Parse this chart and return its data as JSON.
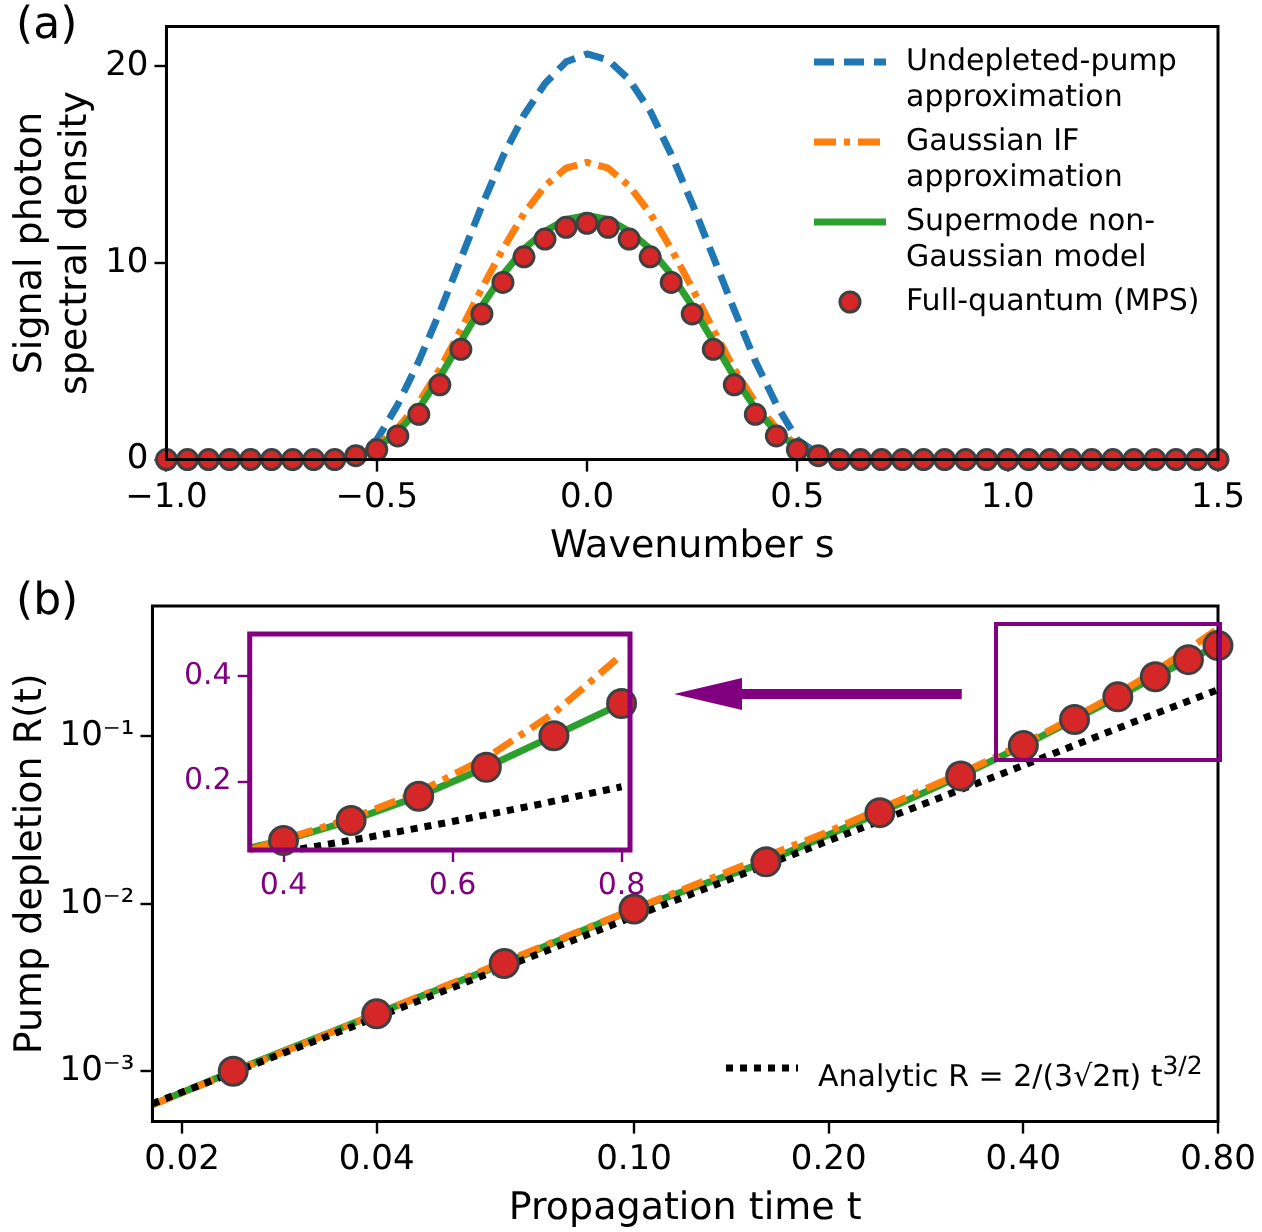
{
  "chart_data": [
    {
      "type": "line",
      "title": "(a)",
      "xlabel": "Wavenumber s",
      "ylabel": "Signal photon\nspectral density",
      "xlim": [
        -1,
        1.5
      ],
      "xticks": [
        {
          "value": -1,
          "label": "−1.0"
        },
        {
          "value": -0.5,
          "label": "−0.5"
        },
        {
          "value": 0,
          "label": "0.0"
        },
        0.5,
        {
          "value": 1,
          "label": "1.0"
        },
        1.5
      ],
      "ylim": [
        0,
        22
      ],
      "yticks": [
        0,
        10,
        20
      ],
      "grid": false,
      "legend": "top right",
      "series": [
        {
          "name": "Undepleted-pump approximation",
          "color": "#1f77b4",
          "line_style": "dashed",
          "marker": "none",
          "x": [
            -1,
            -0.6,
            -0.55,
            -0.5,
            -0.45,
            -0.4,
            -0.35,
            -0.3,
            -0.25,
            -0.2,
            -0.15,
            -0.1,
            -0.05,
            0,
            0.05,
            0.1,
            0.15,
            0.2,
            0.25,
            0.3,
            0.35,
            0.4,
            0.45,
            0.5,
            0.55,
            0.6,
            1.5
          ],
          "values": [
            0,
            0,
            0.3,
            1.0,
            2.8,
            5.0,
            7.5,
            10.2,
            12.9,
            15.4,
            17.5,
            19.1,
            20.2,
            20.6,
            20.3,
            19.3,
            17.7,
            15.5,
            13.0,
            10.3,
            7.6,
            5.0,
            2.8,
            1.0,
            0.3,
            0,
            0
          ]
        },
        {
          "name": "Gaussian IF approximation",
          "color": "#ff7f0e",
          "line_style": "dashdot",
          "marker": "none",
          "x": [
            -0.55,
            -0.5,
            -0.45,
            -0.4,
            -0.35,
            -0.3,
            -0.25,
            -0.2,
            -0.15,
            -0.1,
            -0.05,
            0,
            0.05,
            0.1,
            0.15,
            0.2,
            0.25,
            0.3,
            0.35,
            0.4,
            0.45,
            0.5,
            0.55
          ],
          "values": [
            0.2,
            0.7,
            1.6,
            2.9,
            4.6,
            6.6,
            8.7,
            10.7,
            12.5,
            13.9,
            14.8,
            15.1,
            14.8,
            13.9,
            12.5,
            10.7,
            8.7,
            6.6,
            4.6,
            2.9,
            1.6,
            0.7,
            0.2
          ]
        },
        {
          "name": "Supermode non-Gaussian model",
          "color": "#2ca02c",
          "line_style": "solid",
          "marker": "none",
          "x": [
            -0.55,
            -0.5,
            -0.45,
            -0.4,
            -0.35,
            -0.3,
            -0.25,
            -0.2,
            -0.15,
            -0.1,
            -0.05,
            0,
            0.05,
            0.1,
            0.15,
            0.2,
            0.25,
            0.3,
            0.35,
            0.4,
            0.45,
            0.5,
            0.55
          ],
          "values": [
            0.2,
            0.6,
            1.4,
            2.6,
            4.2,
            6.0,
            7.8,
            9.4,
            10.7,
            11.6,
            12.2,
            12.4,
            12.2,
            11.6,
            10.7,
            9.4,
            7.8,
            6.0,
            4.2,
            2.6,
            1.4,
            0.6,
            0.2
          ]
        },
        {
          "name": "Full-quantum (MPS)",
          "type": "scatter",
          "color": "#d62728",
          "marker": "circle",
          "x": [
            -1,
            -0.95,
            -0.9,
            -0.85,
            -0.8,
            -0.75,
            -0.7,
            -0.65,
            -0.6,
            -0.55,
            -0.5,
            -0.45,
            -0.4,
            -0.35,
            -0.3,
            -0.25,
            -0.2,
            -0.15,
            -0.1,
            -0.05,
            0,
            0.05,
            0.1,
            0.15,
            0.2,
            0.25,
            0.3,
            0.35,
            0.4,
            0.45,
            0.5,
            0.55,
            0.6,
            0.65,
            0.7,
            0.75,
            0.8,
            0.85,
            0.9,
            0.95,
            1,
            1.05,
            1.1,
            1.15,
            1.2,
            1.25,
            1.3,
            1.35,
            1.4,
            1.45,
            1.5
          ],
          "values": [
            0,
            0,
            0,
            0,
            0,
            0,
            0,
            0,
            0,
            0.2,
            0.5,
            1.2,
            2.3,
            3.8,
            5.6,
            7.4,
            9.0,
            10.3,
            11.2,
            11.8,
            12.0,
            11.8,
            11.2,
            10.3,
            9.0,
            7.4,
            5.6,
            3.8,
            2.3,
            1.2,
            0.5,
            0.2,
            0,
            0,
            0,
            0,
            0,
            0,
            0,
            0,
            0,
            0,
            0,
            0,
            0,
            0,
            0,
            0,
            0,
            0,
            0
          ]
        }
      ]
    },
    {
      "type": "line",
      "title": "(b)",
      "xlabel": "Propagation time t",
      "ylabel": "Pump depletion R(t)",
      "log": "xy",
      "xlim": [
        0.018,
        0.8
      ],
      "xticks": [
        0.02,
        0.04,
        {
          "value": 0.1,
          "label": "0.10"
        },
        {
          "value": 0.2,
          "label": "0.20"
        },
        {
          "value": 0.4,
          "label": "0.40"
        },
        {
          "value": 0.8,
          "label": "0.80"
        }
      ],
      "ylim": [
        0.0005,
        0.6
      ],
      "yticks": [
        {
          "value": 0.001,
          "label": "10⁻³"
        },
        {
          "value": 0.01,
          "label": "10⁻²"
        },
        {
          "value": 0.1,
          "label": "10⁻¹"
        }
      ],
      "grid": false,
      "legend": "bottom right",
      "series": [
        {
          "color": "#2ca02c",
          "line_style": "solid",
          "marker": "none",
          "x": [
            0.018,
            0.024,
            0.04,
            0.063,
            0.1,
            0.16,
            0.24,
            0.32,
            0.4,
            0.48,
            0.56,
            0.64,
            0.72,
            0.8
          ],
          "values": [
            0.00063,
            0.001,
            0.0022,
            0.0044,
            0.0093,
            0.0178,
            0.035,
            0.058,
            0.088,
            0.126,
            0.172,
            0.227,
            0.287,
            0.348
          ]
        },
        {
          "color": "#ff7f0e",
          "line_style": "dashdot",
          "marker": "none",
          "x": [
            0.018,
            0.04,
            0.1,
            0.2,
            0.32,
            0.4,
            0.48,
            0.56,
            0.64,
            0.72,
            0.8
          ],
          "values": [
            0.00063,
            0.0022,
            0.0093,
            0.027,
            0.06,
            0.09,
            0.13,
            0.18,
            0.245,
            0.33,
            0.44
          ]
        },
        {
          "name": "Analytic R = 2/(3√2π) t$^{3/2}$",
          "color": "#000000",
          "line_style": "dotted",
          "marker": "none",
          "x": [
            0.018,
            0.04,
            0.1,
            0.2,
            0.4,
            0.6,
            0.8
          ],
          "values": [
            0.00064,
            0.0021,
            0.0084,
            0.0238,
            0.067,
            0.124,
            0.19
          ]
        },
        {
          "type": "scatter",
          "color": "#d62728",
          "marker": "circle",
          "x": [
            0.024,
            0.04,
            0.063,
            0.1,
            0.16,
            0.24,
            0.32,
            0.4,
            0.48,
            0.56,
            0.64,
            0.72,
            0.8
          ],
          "values": [
            0.001,
            0.0022,
            0.0044,
            0.0093,
            0.0178,
            0.035,
            0.058,
            0.088,
            0.126,
            0.172,
            0.227,
            0.287,
            0.348
          ]
        }
      ]
    },
    {
      "type": "line",
      "xlim": [
        0.36,
        0.81
      ],
      "xticks": [
        0.4,
        0.6,
        0.8
      ],
      "ylim": [
        0.07,
        0.48
      ],
      "yticks": [
        0.2,
        0.4
      ],
      "grid": false,
      "series": [
        {
          "color": "#2ca02c",
          "line_style": "solid",
          "marker": "none",
          "x": [
            0.36,
            0.4,
            0.48,
            0.56,
            0.64,
            0.72,
            0.8
          ],
          "values": [
            0.074,
            0.088,
            0.126,
            0.172,
            0.227,
            0.287,
            0.348
          ]
        },
        {
          "color": "#ff7f0e",
          "line_style": "dashdot",
          "marker": "none",
          "x": [
            0.36,
            0.4,
            0.48,
            0.56,
            0.64,
            0.72,
            0.8
          ],
          "values": [
            0.07,
            0.09,
            0.13,
            0.18,
            0.245,
            0.33,
            0.44
          ]
        },
        {
          "color": "#000000",
          "line_style": "dotted",
          "marker": "none",
          "x": [
            0.42,
            0.5,
            0.6,
            0.7,
            0.8
          ],
          "values": [
            0.072,
            0.094,
            0.124,
            0.156,
            0.19
          ]
        },
        {
          "type": "scatter",
          "color": "#d62728",
          "marker": "circle",
          "x": [
            0.4,
            0.48,
            0.56,
            0.64,
            0.72,
            0.8
          ],
          "values": [
            0.088,
            0.126,
            0.172,
            0.227,
            0.287,
            0.348
          ]
        }
      ]
    }
  ]
}
